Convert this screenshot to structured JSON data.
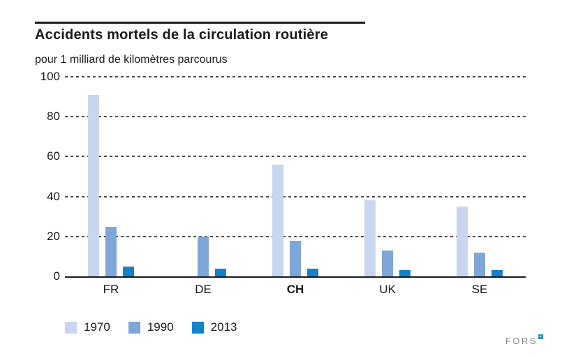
{
  "header": {
    "title": "Accidents mortels de la circulation routière",
    "subtitle": "pour 1 milliard de kilomètres parcourus"
  },
  "chart_data": {
    "type": "bar",
    "title": "Accidents mortels de la circulation routière",
    "subtitle_unit": "pour 1 milliard de kilomètres parcourus",
    "categories": [
      "FR",
      "DE",
      "CH",
      "UK",
      "SE"
    ],
    "emphasized_category": "CH",
    "series": [
      {
        "name": "1970",
        "color": "#c9d6ee",
        "values": [
          91,
          null,
          56,
          38,
          35
        ]
      },
      {
        "name": "1990",
        "color": "#7ea6d9",
        "values": [
          25,
          20,
          18,
          13,
          12
        ]
      },
      {
        "name": "2013",
        "color": "#1482c8",
        "values": [
          5,
          4,
          4,
          3,
          3
        ]
      }
    ],
    "ylim": [
      0,
      100
    ],
    "yticks": [
      0,
      20,
      40,
      60,
      80,
      100
    ],
    "grid": "horizontal-dashed",
    "legend_position": "bottom-left"
  },
  "footer": {
    "logo_text": "FORS"
  }
}
